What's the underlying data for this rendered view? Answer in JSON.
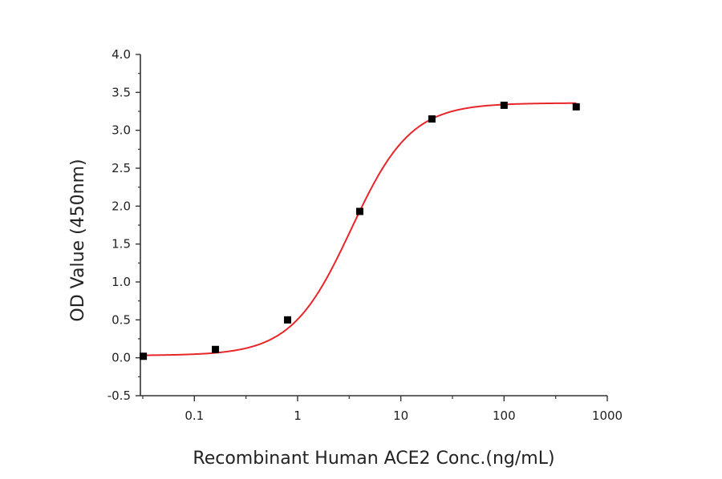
{
  "chart_data": {
    "type": "scatter",
    "title": "",
    "xlabel": "Recombinant Human ACE2 Conc.(ng/mL)",
    "ylabel": "OD Value (450nm)",
    "xscale": "log",
    "xlim": [
      0.03,
      1000
    ],
    "ylim": [
      -0.5,
      4.0
    ],
    "x_ticks": [
      0.1,
      1,
      10,
      100,
      1000
    ],
    "x_tick_labels": [
      "0.1",
      "1",
      "10",
      "100",
      "1000"
    ],
    "y_ticks": [
      -0.5,
      0.0,
      0.5,
      1.0,
      1.5,
      2.0,
      2.5,
      3.0,
      3.5,
      4.0
    ],
    "y_tick_labels": [
      "-0.5",
      "0.0",
      "0.5",
      "1.0",
      "1.5",
      "2.0",
      "2.5",
      "3.0",
      "3.5",
      "4.0"
    ],
    "grid": false,
    "legend": null,
    "series": [
      {
        "name": "Measured OD",
        "kind": "points",
        "marker": "square",
        "color": "#000000",
        "x": [
          0.032,
          0.16,
          0.8,
          4,
          20,
          100,
          500
        ],
        "y": [
          0.02,
          0.11,
          0.5,
          1.93,
          3.15,
          3.33,
          3.31
        ]
      },
      {
        "name": "4PL fit",
        "kind": "curve",
        "color": "#e8262a",
        "params": {
          "bottom": 0.03,
          "top": 3.36,
          "ec50": 3.3,
          "hill": 1.5
        }
      }
    ]
  },
  "labels": {
    "xlabel": "Recombinant Human ACE2 Conc.(ng/mL)",
    "ylabel": "OD Value (450nm)"
  }
}
